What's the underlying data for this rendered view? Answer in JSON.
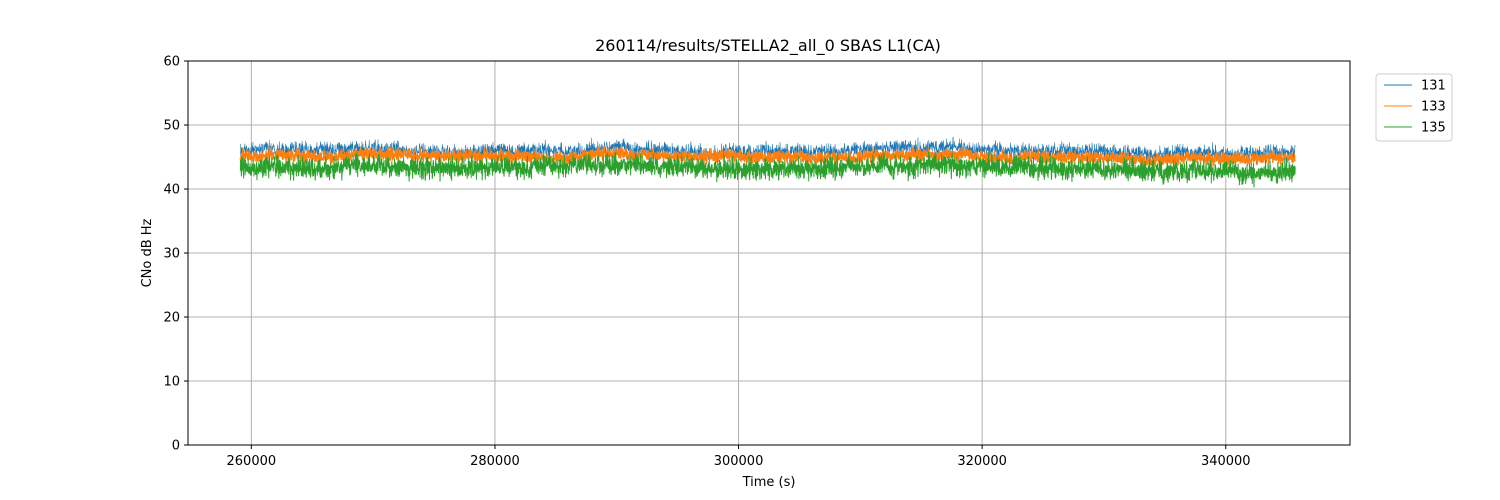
{
  "chart_data": {
    "type": "line",
    "title": "260114/results/STELLA2_all_0 SBAS L1(CA)",
    "xlabel": "Time (s)",
    "ylabel": "CNo dB Hz",
    "xlim": [
      254800,
      350200
    ],
    "ylim": [
      0,
      60
    ],
    "xticks": [
      260000,
      280000,
      300000,
      320000,
      340000
    ],
    "yticks": [
      0,
      10,
      20,
      30,
      40,
      50,
      60
    ],
    "grid": true,
    "legend_position": "upper-right-outside",
    "x_range": [
      259100,
      345700
    ],
    "series": [
      {
        "name": "131",
        "color": "#1f77b4",
        "mean": 46.0,
        "noise": 1.2,
        "width": 0.6,
        "trend": [
          [
            259100,
            45.8
          ],
          [
            262000,
            46.4
          ],
          [
            266000,
            45.9
          ],
          [
            270000,
            46.3
          ],
          [
            275000,
            45.7
          ],
          [
            280000,
            46.0
          ],
          [
            285000,
            45.8
          ],
          [
            290000,
            46.4
          ],
          [
            295000,
            45.9
          ],
          [
            300000,
            45.8
          ],
          [
            305000,
            45.9
          ],
          [
            310000,
            46.1
          ],
          [
            314000,
            46.5
          ],
          [
            318000,
            46.4
          ],
          [
            322000,
            46.0
          ],
          [
            326000,
            45.9
          ],
          [
            330000,
            45.7
          ],
          [
            334000,
            45.4
          ],
          [
            338000,
            45.7
          ],
          [
            342000,
            45.6
          ],
          [
            345700,
            45.8
          ]
        ]
      },
      {
        "name": "133",
        "color": "#ff7f0e",
        "mean": 45.2,
        "noise": 0.9,
        "width": 1.4,
        "trend": [
          [
            259100,
            44.9
          ],
          [
            262000,
            45.4
          ],
          [
            266000,
            45.0
          ],
          [
            270000,
            45.6
          ],
          [
            275000,
            45.1
          ],
          [
            280000,
            45.3
          ],
          [
            285000,
            44.9
          ],
          [
            290000,
            45.5
          ],
          [
            295000,
            45.2
          ],
          [
            300000,
            45.0
          ],
          [
            305000,
            44.9
          ],
          [
            310000,
            45.1
          ],
          [
            314000,
            45.4
          ],
          [
            318000,
            45.3
          ],
          [
            322000,
            45.0
          ],
          [
            326000,
            44.9
          ],
          [
            330000,
            44.8
          ],
          [
            334000,
            44.6
          ],
          [
            338000,
            44.8
          ],
          [
            342000,
            44.6
          ],
          [
            345700,
            44.9
          ]
        ]
      },
      {
        "name": "135",
        "color": "#2ca02c",
        "mean": 43.3,
        "noise": 1.6,
        "width": 1.0,
        "trend": [
          [
            259100,
            43.2
          ],
          [
            262000,
            43.4
          ],
          [
            266000,
            43.1
          ],
          [
            270000,
            43.6
          ],
          [
            275000,
            43.2
          ],
          [
            280000,
            43.3
          ],
          [
            285000,
            43.5
          ],
          [
            290000,
            43.9
          ],
          [
            295000,
            43.4
          ],
          [
            300000,
            43.1
          ],
          [
            305000,
            43.3
          ],
          [
            310000,
            43.5
          ],
          [
            314000,
            43.6
          ],
          [
            318000,
            43.7
          ],
          [
            322000,
            43.5
          ],
          [
            326000,
            43.3
          ],
          [
            330000,
            43.0
          ],
          [
            334000,
            42.9
          ],
          [
            338000,
            42.8
          ],
          [
            342000,
            42.5
          ],
          [
            345700,
            43.0
          ]
        ]
      }
    ]
  }
}
